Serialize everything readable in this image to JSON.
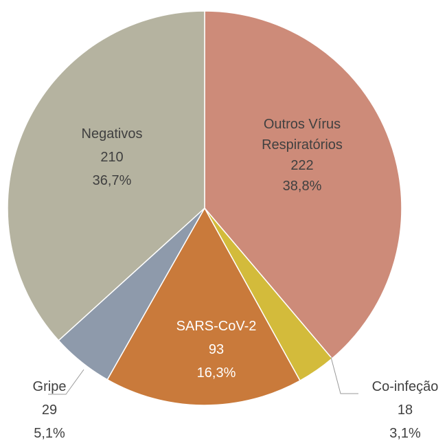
{
  "chart_data": {
    "type": "pie",
    "categories": [
      "Outros Vírus Respiratórios",
      "Co-infeção",
      "SARS-CoV-2",
      "Gripe",
      "Negativos"
    ],
    "values": [
      222,
      18,
      93,
      29,
      210
    ],
    "percent_labels": [
      "38,8%",
      "3,1%",
      "16,3%",
      "5,1%",
      "36,7%"
    ],
    "colors": [
      "#cd8b79",
      "#d3bb3b",
      "#c97a3b",
      "#8e9aab",
      "#b5b3a0"
    ]
  }
}
